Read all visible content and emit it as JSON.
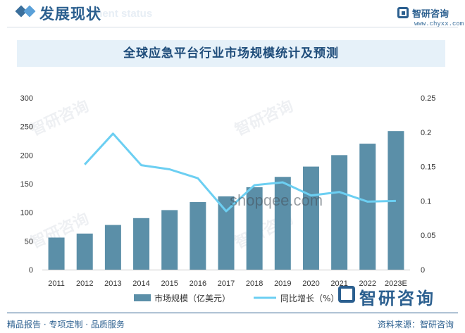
{
  "header": {
    "section_title": "发展现状",
    "section_subtitle": "ment status",
    "logo_name": "智研咨询",
    "logo_url": "www.chyxx.com"
  },
  "watermark": {
    "brand": "智研咨询",
    "site": "shopqee.com"
  },
  "chart_data": {
    "type": "bar",
    "title": "全球应急平台行业市场规模统计及预测",
    "categories": [
      "2011",
      "2012",
      "2013",
      "2014",
      "2015",
      "2016",
      "2017",
      "2018",
      "2019",
      "2020",
      "2021",
      "2022",
      "2023E"
    ],
    "series": [
      {
        "name": "市场规模（亿美元）",
        "type": "bar",
        "axis": "left",
        "color": "#5b8fa8",
        "values": [
          56,
          63,
          78,
          90,
          104,
          118,
          128,
          144,
          162,
          180,
          200,
          220,
          242
        ]
      },
      {
        "name": "同比增长（%）",
        "type": "line",
        "axis": "right",
        "color": "#6ccff2",
        "values": [
          null,
          0.153,
          0.198,
          0.152,
          0.146,
          0.133,
          0.085,
          0.123,
          0.127,
          0.108,
          0.113,
          0.099,
          0.1
        ]
      }
    ],
    "y_left": {
      "min": 0,
      "max": 300,
      "ticks": [
        "0",
        "50",
        "100",
        "150",
        "200",
        "250",
        "300"
      ]
    },
    "y_right": {
      "min": 0,
      "max": 0.25,
      "ticks": [
        "0",
        "0.05",
        "0.1",
        "0.15",
        "0.2",
        "0.25"
      ]
    },
    "grid": false,
    "legend_position": "bottom"
  },
  "footer": {
    "left": "精品报告 · 专项定制 · 品质服务",
    "right": "资料来源：智研咨询"
  }
}
